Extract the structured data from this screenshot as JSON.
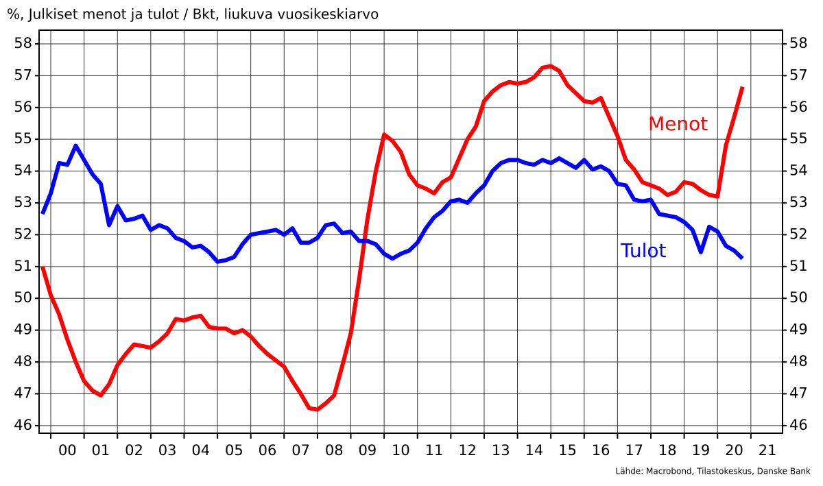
{
  "chart_data": {
    "type": "line",
    "title": "%, Julkiset menot ja tulot / Bkt, liukuva vuosikeskiarvo",
    "source": "Lähde: Macrobond, Tilastokeskus, Danske Bank",
    "x": [
      1999.75,
      2000,
      2000.25,
      2000.5,
      2000.75,
      2001,
      2001.25,
      2001.5,
      2001.75,
      2002,
      2002.25,
      2002.5,
      2002.75,
      2003,
      2003.25,
      2003.5,
      2003.75,
      2004,
      2004.25,
      2004.5,
      2004.75,
      2005,
      2005.25,
      2005.5,
      2005.75,
      2006,
      2006.25,
      2006.5,
      2006.75,
      2007,
      2007.25,
      2007.5,
      2007.75,
      2008,
      2008.25,
      2008.5,
      2008.75,
      2009,
      2009.25,
      2009.5,
      2009.75,
      2010,
      2010.25,
      2010.5,
      2010.75,
      2011,
      2011.25,
      2011.5,
      2011.75,
      2012,
      2012.25,
      2012.5,
      2012.75,
      2013,
      2013.25,
      2013.5,
      2013.75,
      2014,
      2014.25,
      2014.5,
      2014.75,
      2015,
      2015.25,
      2015.5,
      2015.75,
      2016,
      2016.25,
      2016.5,
      2016.75,
      2017,
      2017.25,
      2017.5,
      2017.75,
      2018,
      2018.25,
      2018.5,
      2018.75,
      2019,
      2019.25,
      2019.5,
      2019.75,
      2020,
      2020.25,
      2020.5,
      2020.75
    ],
    "series": [
      {
        "name": "Menot",
        "color": "#ff0000",
        "values": [
          51.0,
          50.1,
          49.5,
          48.7,
          48.0,
          47.4,
          47.1,
          46.95,
          47.3,
          47.9,
          48.25,
          48.55,
          48.5,
          48.45,
          48.65,
          48.9,
          49.35,
          49.3,
          49.4,
          49.45,
          49.1,
          49.05,
          49.05,
          48.9,
          49.0,
          48.8,
          48.5,
          48.25,
          48.05,
          47.85,
          47.4,
          47.0,
          46.55,
          46.5,
          46.7,
          46.95,
          47.9,
          48.9,
          50.6,
          52.5,
          54.0,
          55.15,
          54.95,
          54.6,
          53.9,
          53.55,
          53.45,
          53.3,
          53.65,
          53.8,
          54.4,
          55.0,
          55.4,
          56.2,
          56.5,
          56.7,
          56.8,
          56.75,
          56.8,
          56.95,
          57.25,
          57.3,
          57.15,
          56.7,
          56.45,
          56.2,
          56.15,
          56.3,
          55.7,
          55.1,
          54.35,
          54.05,
          53.65,
          53.55,
          53.45,
          53.25,
          53.35,
          53.65,
          53.6,
          53.4,
          53.25,
          53.2,
          54.8,
          55.7,
          56.65
        ]
      },
      {
        "name": "Tulot",
        "color": "#0000ff",
        "values": [
          52.65,
          53.3,
          54.25,
          54.2,
          54.8,
          54.35,
          53.9,
          53.6,
          52.3,
          52.9,
          52.45,
          52.5,
          52.6,
          52.15,
          52.3,
          52.2,
          51.9,
          51.8,
          51.6,
          51.65,
          51.45,
          51.15,
          51.2,
          51.3,
          51.7,
          52.0,
          52.05,
          52.1,
          52.15,
          52.0,
          52.2,
          51.75,
          51.75,
          51.9,
          52.3,
          52.35,
          52.05,
          52.1,
          51.8,
          51.8,
          51.7,
          51.4,
          51.25,
          51.4,
          51.5,
          51.75,
          52.2,
          52.55,
          52.75,
          53.05,
          53.1,
          53.0,
          53.3,
          53.55,
          54.0,
          54.25,
          54.35,
          54.35,
          54.25,
          54.2,
          54.35,
          54.25,
          54.4,
          54.25,
          54.1,
          54.35,
          54.05,
          54.15,
          54.0,
          53.6,
          53.55,
          53.1,
          53.05,
          53.1,
          52.65,
          52.6,
          52.55,
          52.4,
          52.15,
          51.45,
          52.25,
          52.1,
          51.65,
          51.5,
          51.25
        ]
      }
    ],
    "xlim": [
      1999.65,
      2021.95
    ],
    "xticks": [
      {
        "value": 2000,
        "label": "00"
      },
      {
        "value": 2001,
        "label": "01"
      },
      {
        "value": 2002,
        "label": "02"
      },
      {
        "value": 2003,
        "label": "03"
      },
      {
        "value": 2004,
        "label": "04"
      },
      {
        "value": 2005,
        "label": "05"
      },
      {
        "value": 2006,
        "label": "06"
      },
      {
        "value": 2007,
        "label": "07"
      },
      {
        "value": 2008,
        "label": "08"
      },
      {
        "value": 2009,
        "label": "09"
      },
      {
        "value": 2010,
        "label": "10"
      },
      {
        "value": 2011,
        "label": "11"
      },
      {
        "value": 2012,
        "label": "12"
      },
      {
        "value": 2013,
        "label": "13"
      },
      {
        "value": 2014,
        "label": "14"
      },
      {
        "value": 2015,
        "label": "15"
      },
      {
        "value": 2016,
        "label": "16"
      },
      {
        "value": 2017,
        "label": "17"
      },
      {
        "value": 2018,
        "label": "18"
      },
      {
        "value": 2019,
        "label": "19"
      },
      {
        "value": 2020,
        "label": "20"
      },
      {
        "value": 2021,
        "label": "21"
      }
    ],
    "ylim": [
      45.76,
      58.43
    ],
    "yticks": [
      46,
      47,
      48,
      49,
      50,
      51,
      52,
      53,
      54,
      55,
      56,
      57,
      58
    ],
    "grid": true
  }
}
